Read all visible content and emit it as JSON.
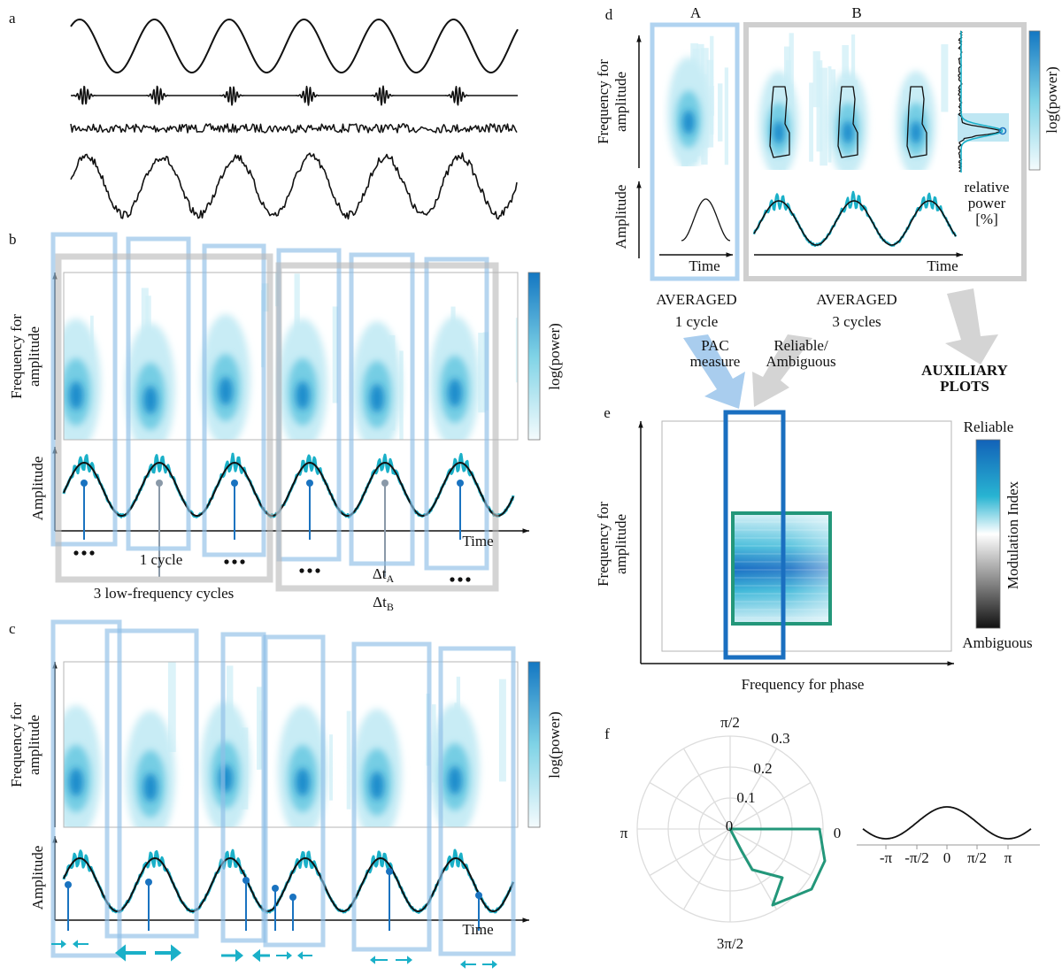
{
  "a": {
    "label": "a"
  },
  "b": {
    "label": "b",
    "freq_label": [
      "Frequency for",
      "amplitude"
    ],
    "colorbar": "log(power)",
    "amp_label": "Amplitude",
    "time": "Time",
    "cycle": "1 cycle",
    "group": "3 low-frequency cycles",
    "dt_a": [
      "Δt",
      "A"
    ],
    "dt_b": [
      "Δt",
      "B"
    ]
  },
  "c": {
    "label": "c",
    "freq_label": [
      "Frequency for",
      "amplitude"
    ],
    "colorbar": "log(power)",
    "amp_label": "Amplitude",
    "time": "Time"
  },
  "d": {
    "label": "d",
    "col_a": "A",
    "col_b": "B",
    "freq_label": [
      "Frequency for",
      "amplitude"
    ],
    "amp_label": "Amplitude",
    "time_a": "Time",
    "time_b": "Time",
    "colorbar": "log(power)",
    "side": [
      "relative",
      "power",
      "[%]"
    ],
    "avg_a": [
      "AVERAGED",
      "1 cycle"
    ],
    "avg_b": [
      "AVERAGED",
      "3 cycles"
    ]
  },
  "arrows": {
    "pac": [
      "PAC",
      "measure"
    ],
    "rel": [
      "Reliable/",
      "Ambiguous"
    ],
    "aux": [
      "AUXILIARY",
      "PLOTS"
    ]
  },
  "e": {
    "label": "e",
    "freq_label": [
      "Frequency for",
      "amplitude"
    ],
    "x_label": "Frequency for phase",
    "top": "Reliable",
    "bottom": "Ambiguous",
    "colorbar": "Modulation Index"
  },
  "f": {
    "label": "f",
    "angles": [
      "π/2",
      "π",
      "0",
      "3π/2"
    ],
    "radii": [
      "0.3",
      "0.2",
      "0.1",
      "0"
    ],
    "phase_ticks": [
      "-π",
      "-π/2",
      "0",
      "π/2",
      "π"
    ]
  }
}
